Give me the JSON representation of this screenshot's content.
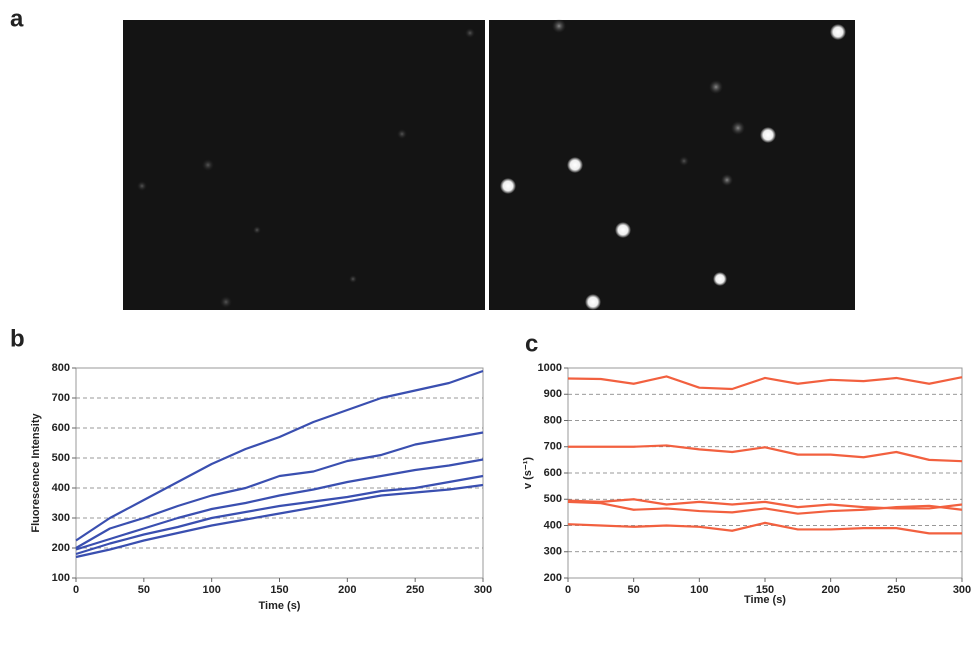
{
  "panel_labels": [
    "a",
    "b",
    "c"
  ],
  "chart_data": [
    {
      "type": "line",
      "x_label": "Time (s)",
      "y_label": "Fluorescence Intensity",
      "x": [
        0,
        25,
        50,
        75,
        100,
        125,
        150,
        175,
        200,
        225,
        250,
        275,
        300
      ],
      "xlim": [
        0,
        300
      ],
      "xticks": [
        0,
        50,
        100,
        150,
        200,
        250,
        300
      ],
      "ylim": [
        100,
        800
      ],
      "yticks": [
        100,
        200,
        300,
        400,
        500,
        600,
        700,
        800
      ],
      "grid": true,
      "series": [
        {
          "color": "#3a4fb0",
          "values": [
            225,
            300,
            360,
            420,
            480,
            530,
            570,
            620,
            660,
            700,
            725,
            750,
            790
          ]
        },
        {
          "color": "#3a4fb0",
          "values": [
            200,
            265,
            300,
            340,
            375,
            400,
            440,
            455,
            490,
            510,
            545,
            565,
            585
          ]
        },
        {
          "color": "#3a4fb0",
          "values": [
            195,
            230,
            265,
            300,
            330,
            350,
            375,
            395,
            420,
            440,
            460,
            475,
            495
          ]
        },
        {
          "color": "#3a4fb0",
          "values": [
            180,
            215,
            245,
            270,
            300,
            320,
            340,
            355,
            370,
            390,
            400,
            420,
            440
          ]
        },
        {
          "color": "#3a4fb0",
          "values": [
            170,
            195,
            225,
            250,
            275,
            295,
            315,
            335,
            355,
            375,
            385,
            395,
            410
          ]
        }
      ]
    },
    {
      "type": "line",
      "x_label": "Time (s)",
      "y_label": "v (s⁻¹)",
      "x": [
        0,
        25,
        50,
        75,
        100,
        125,
        150,
        175,
        200,
        225,
        250,
        275,
        300
      ],
      "xlim": [
        0,
        300
      ],
      "xticks": [
        0,
        50,
        100,
        150,
        200,
        250,
        300
      ],
      "ylim": [
        200,
        1000
      ],
      "yticks": [
        200,
        300,
        400,
        500,
        600,
        700,
        800,
        900,
        1000
      ],
      "grid": true,
      "series": [
        {
          "color": "#f2603f",
          "values": [
            960,
            958,
            940,
            968,
            925,
            920,
            962,
            940,
            955,
            950,
            962,
            940,
            965
          ]
        },
        {
          "color": "#f2603f",
          "values": [
            700,
            700,
            700,
            705,
            690,
            680,
            698,
            670,
            670,
            660,
            680,
            650,
            645
          ]
        },
        {
          "color": "#f2603f",
          "values": [
            495,
            490,
            500,
            480,
            490,
            480,
            490,
            470,
            480,
            470,
            465,
            465,
            480
          ]
        },
        {
          "color": "#f2603f",
          "values": [
            490,
            485,
            460,
            465,
            455,
            450,
            465,
            445,
            455,
            460,
            470,
            475,
            460
          ]
        },
        {
          "color": "#f2603f",
          "values": [
            405,
            400,
            395,
            400,
            395,
            380,
            410,
            385,
            385,
            390,
            390,
            370,
            370
          ]
        }
      ]
    }
  ]
}
